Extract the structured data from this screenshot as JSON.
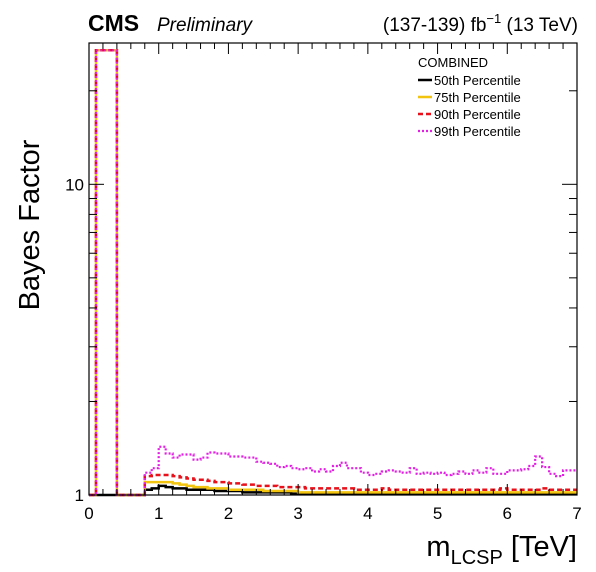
{
  "header": {
    "experiment": "CMS",
    "status": "Preliminary",
    "lumi_text": "(137-139) fb",
    "lumi_sup": "−1",
    "energy_text": " (13 TeV)"
  },
  "chart_data": {
    "type": "line",
    "title": "",
    "xlabel_main": "m",
    "xlabel_sub": "LCSP",
    "xlabel_unit": " [TeV]",
    "ylabel": "Bayes Factor",
    "xlim": [
      0,
      7
    ],
    "ylim": [
      1,
      28.5
    ],
    "y_scale": "log",
    "x_ticks": [
      0,
      1,
      2,
      3,
      4,
      5,
      6,
      7
    ],
    "y_tick_labels": [
      {
        "value": 1,
        "label": "1"
      },
      {
        "value": 10,
        "label": "10"
      }
    ],
    "legend": {
      "header": "COMBINED",
      "placement": "top-right"
    },
    "bin_width": 0.1,
    "x_edges_start": 0,
    "series": [
      {
        "name": "50th Percentile",
        "color": "#000000",
        "style": "solid",
        "values": [
          1.0,
          1.0,
          1.0,
          1.0,
          1.0,
          1.0,
          1.0,
          1.0,
          1.04,
          1.05,
          1.07,
          1.06,
          1.05,
          1.05,
          1.04,
          1.04,
          1.04,
          1.04,
          1.03,
          1.03,
          1.03,
          1.03,
          1.02,
          1.02,
          1.02,
          1.02,
          1.02,
          1.02,
          1.02,
          1.01,
          1.01,
          1.01,
          1.01,
          1.01,
          1.01,
          1.01,
          1.01,
          1.01,
          1.01,
          1.01,
          1.01,
          1.01,
          1.01,
          1.01,
          1.01,
          1.01,
          1.01,
          1.01,
          1.01,
          1.01,
          1.01,
          1.01,
          1.01,
          1.01,
          1.01,
          1.01,
          1.01,
          1.01,
          1.01,
          1.01,
          1.01,
          1.01,
          1.01,
          1.01,
          1.01,
          1.01,
          1.01,
          1.01,
          1.01,
          1.01
        ]
      },
      {
        "name": "75th Percentile",
        "color": "#f2c40f",
        "style": "solid",
        "values": [
          1.0,
          27.0,
          27.0,
          27.0,
          1.0,
          1.0,
          1.0,
          1.0,
          1.1,
          1.1,
          1.1,
          1.1,
          1.09,
          1.08,
          1.07,
          1.06,
          1.06,
          1.05,
          1.05,
          1.05,
          1.04,
          1.04,
          1.04,
          1.04,
          1.04,
          1.03,
          1.03,
          1.03,
          1.03,
          1.03,
          1.02,
          1.02,
          1.02,
          1.02,
          1.02,
          1.02,
          1.02,
          1.02,
          1.02,
          1.02,
          1.02,
          1.02,
          1.02,
          1.02,
          1.02,
          1.02,
          1.02,
          1.02,
          1.02,
          1.02,
          1.02,
          1.02,
          1.02,
          1.02,
          1.02,
          1.02,
          1.02,
          1.02,
          1.02,
          1.02,
          1.02,
          1.02,
          1.02,
          1.02,
          1.02,
          1.02,
          1.02,
          1.02,
          1.02,
          1.02
        ]
      },
      {
        "name": "90th Percentile",
        "color": "#e8101a",
        "style": "dashed",
        "values": [
          1.0,
          27.0,
          27.0,
          27.0,
          1.0,
          1.0,
          1.0,
          1.0,
          1.15,
          1.16,
          1.16,
          1.16,
          1.15,
          1.14,
          1.13,
          1.12,
          1.12,
          1.11,
          1.1,
          1.1,
          1.09,
          1.09,
          1.08,
          1.08,
          1.07,
          1.07,
          1.07,
          1.06,
          1.06,
          1.06,
          1.06,
          1.05,
          1.05,
          1.05,
          1.05,
          1.05,
          1.05,
          1.05,
          1.04,
          1.04,
          1.04,
          1.04,
          1.05,
          1.04,
          1.04,
          1.04,
          1.04,
          1.04,
          1.04,
          1.04,
          1.04,
          1.04,
          1.04,
          1.04,
          1.04,
          1.04,
          1.04,
          1.04,
          1.04,
          1.05,
          1.04,
          1.04,
          1.04,
          1.04,
          1.04,
          1.05,
          1.04,
          1.04,
          1.04,
          1.04
        ]
      },
      {
        "name": "99th Percentile",
        "color": "#e51ce5",
        "style": "dotted",
        "values": [
          1.0,
          27.0,
          27.0,
          27.0,
          1.0,
          1.0,
          1.0,
          1.0,
          1.18,
          1.22,
          1.43,
          1.36,
          1.32,
          1.35,
          1.35,
          1.3,
          1.32,
          1.37,
          1.36,
          1.36,
          1.33,
          1.33,
          1.32,
          1.32,
          1.28,
          1.27,
          1.26,
          1.23,
          1.24,
          1.22,
          1.21,
          1.22,
          1.19,
          1.21,
          1.19,
          1.24,
          1.27,
          1.22,
          1.22,
          1.18,
          1.16,
          1.17,
          1.19,
          1.2,
          1.19,
          1.18,
          1.22,
          1.17,
          1.18,
          1.17,
          1.18,
          1.16,
          1.17,
          1.19,
          1.17,
          1.2,
          1.18,
          1.22,
          1.17,
          1.17,
          1.2,
          1.2,
          1.21,
          1.24,
          1.33,
          1.23,
          1.17,
          1.15,
          1.2,
          1.2
        ]
      }
    ]
  }
}
